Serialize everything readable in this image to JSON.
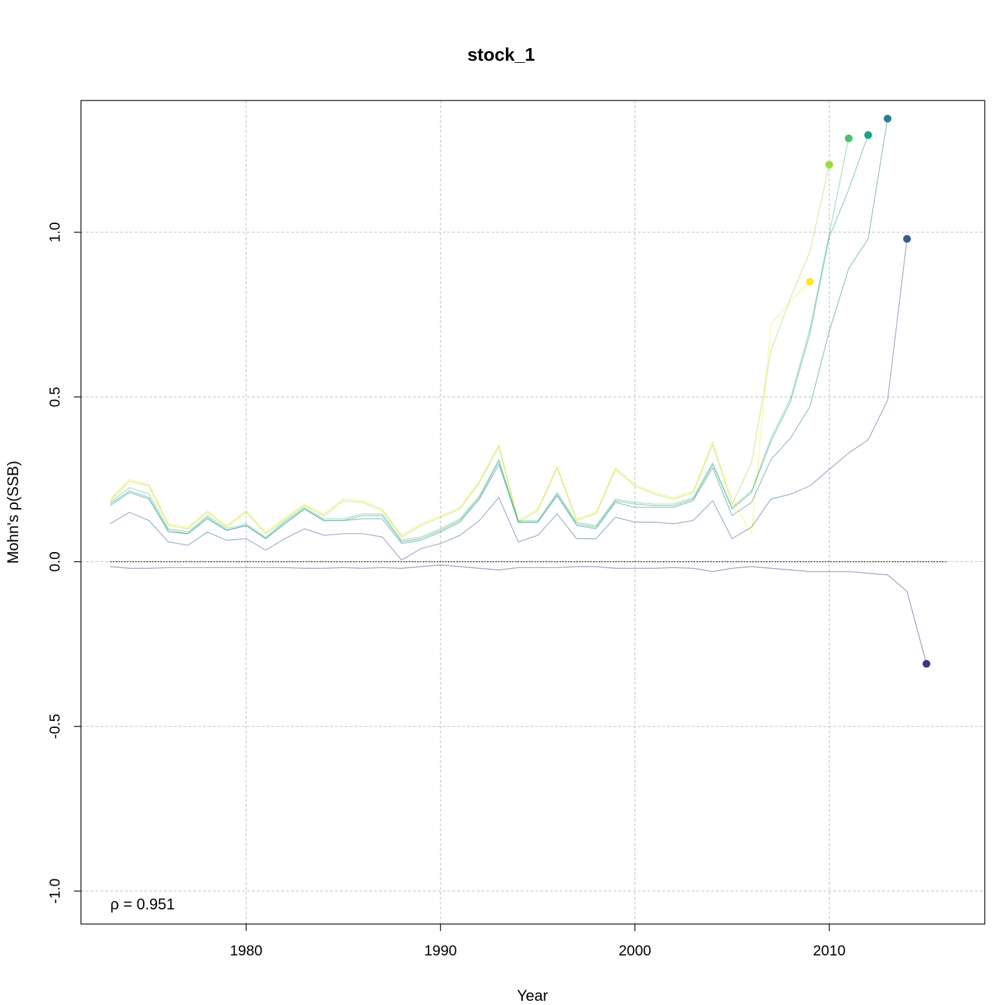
{
  "chart_data": {
    "type": "line",
    "title": "stock_1",
    "xlabel": "Year",
    "ylabel": "Mohn's ρ(SSB)",
    "xlim": [
      1971.5,
      2018
    ],
    "ylim": [
      -1.1,
      1.4
    ],
    "x_ticks": [
      "1980",
      "1990",
      "2000",
      "2010"
    ],
    "y_ticks": [
      "-1.0",
      "-0.5",
      "0.0",
      "0.5",
      "1.0"
    ],
    "grid": true,
    "legend": "none",
    "annotation": "ρ = 0.951",
    "reference_line": {
      "y": 0,
      "style": "dotted",
      "x_range": [
        1973,
        2016
      ]
    },
    "start_year": 1973,
    "series": [
      {
        "color": "#fde725",
        "terminal_year": 2009,
        "values": [
          0.19,
          0.25,
          0.235,
          0.115,
          0.105,
          0.155,
          0.11,
          0.155,
          0.09,
          0.135,
          0.175,
          0.145,
          0.19,
          0.185,
          0.16,
          0.08,
          0.115,
          0.14,
          0.165,
          0.245,
          0.355,
          0.125,
          0.16,
          0.29,
          0.13,
          0.15,
          0.285,
          0.235,
          0.21,
          0.195,
          0.215,
          0.365,
          0.19,
          0.085,
          0.72,
          0.79,
          0.85
        ]
      },
      {
        "color": "#a0da39",
        "terminal_year": 2010,
        "values": [
          0.185,
          0.245,
          0.23,
          0.11,
          0.1,
          0.15,
          0.105,
          0.15,
          0.085,
          0.13,
          0.17,
          0.14,
          0.185,
          0.18,
          0.155,
          0.075,
          0.11,
          0.135,
          0.16,
          0.24,
          0.35,
          0.12,
          0.155,
          0.285,
          0.125,
          0.145,
          0.28,
          0.23,
          0.205,
          0.19,
          0.21,
          0.355,
          0.175,
          0.3,
          0.64,
          0.8,
          0.94,
          1.205
        ]
      },
      {
        "color": "#4ac16d",
        "terminal_year": 2011,
        "values": [
          0.18,
          0.225,
          0.205,
          0.1,
          0.09,
          0.14,
          0.1,
          0.115,
          0.075,
          0.125,
          0.165,
          0.13,
          0.13,
          0.145,
          0.145,
          0.065,
          0.075,
          0.1,
          0.13,
          0.2,
          0.31,
          0.125,
          0.125,
          0.21,
          0.12,
          0.11,
          0.19,
          0.18,
          0.175,
          0.175,
          0.195,
          0.3,
          0.165,
          0.215,
          0.375,
          0.495,
          0.705,
          0.995,
          1.285
        ]
      },
      {
        "color": "#1fa187",
        "terminal_year": 2012,
        "values": [
          0.175,
          0.215,
          0.195,
          0.095,
          0.085,
          0.135,
          0.095,
          0.11,
          0.07,
          0.12,
          0.16,
          0.125,
          0.125,
          0.14,
          0.14,
          0.06,
          0.07,
          0.095,
          0.125,
          0.195,
          0.305,
          0.12,
          0.12,
          0.205,
          0.115,
          0.105,
          0.185,
          0.175,
          0.17,
          0.17,
          0.19,
          0.295,
          0.16,
          0.21,
          0.365,
          0.485,
          0.69,
          0.985,
          1.13,
          1.295
        ]
      },
      {
        "color": "#277f8e",
        "terminal_year": 2013,
        "values": [
          0.17,
          0.21,
          0.19,
          0.09,
          0.085,
          0.13,
          0.095,
          0.11,
          0.07,
          0.115,
          0.16,
          0.125,
          0.125,
          0.13,
          0.13,
          0.055,
          0.065,
          0.09,
          0.12,
          0.19,
          0.295,
          0.12,
          0.12,
          0.2,
          0.11,
          0.1,
          0.18,
          0.165,
          0.165,
          0.165,
          0.185,
          0.285,
          0.14,
          0.18,
          0.31,
          0.375,
          0.47,
          0.7,
          0.89,
          0.98,
          1.345
        ]
      },
      {
        "color": "#365c8d",
        "terminal_year": 2014,
        "values": [
          0.115,
          0.15,
          0.125,
          0.06,
          0.05,
          0.09,
          0.065,
          0.07,
          0.035,
          0.07,
          0.1,
          0.08,
          0.085,
          0.085,
          0.075,
          0.005,
          0.04,
          0.055,
          0.08,
          0.125,
          0.195,
          0.06,
          0.08,
          0.145,
          0.07,
          0.07,
          0.135,
          0.12,
          0.12,
          0.115,
          0.125,
          0.185,
          0.07,
          0.105,
          0.19,
          0.205,
          0.23,
          0.28,
          0.33,
          0.37,
          0.49,
          0.98
        ]
      },
      {
        "color": "#46337e",
        "terminal_year": 2015,
        "values": [
          -0.015,
          -0.02,
          -0.02,
          -0.018,
          -0.018,
          -0.018,
          -0.018,
          -0.018,
          -0.018,
          -0.018,
          -0.02,
          -0.02,
          -0.018,
          -0.02,
          -0.018,
          -0.02,
          -0.015,
          -0.01,
          -0.015,
          -0.02,
          -0.025,
          -0.018,
          -0.018,
          -0.018,
          -0.015,
          -0.015,
          -0.02,
          -0.02,
          -0.02,
          -0.018,
          -0.02,
          -0.03,
          -0.02,
          -0.015,
          -0.02,
          -0.025,
          -0.03,
          -0.03,
          -0.03,
          -0.035,
          -0.04,
          -0.09,
          -0.31
        ]
      }
    ]
  }
}
